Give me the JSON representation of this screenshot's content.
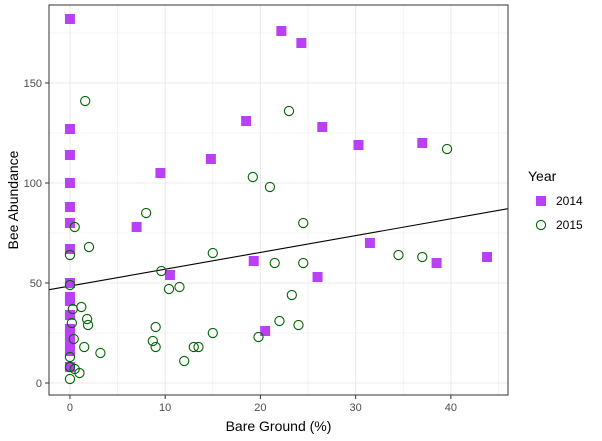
{
  "chart_data": {
    "type": "scatter",
    "title": "",
    "xlabel": "Bare Ground (%)",
    "ylabel": "Bee Abundance",
    "xlim": [
      -2.2,
      46
    ],
    "ylim": [
      -6,
      189
    ],
    "x_ticks": [
      0,
      10,
      20,
      30,
      40
    ],
    "y_ticks": [
      0,
      50,
      100,
      150
    ],
    "grid": true,
    "legend": {
      "title": "Year",
      "position": "right"
    },
    "series": [
      {
        "name": "2014",
        "marker": "square",
        "color": "#B940F5",
        "points": [
          [
            0,
            182
          ],
          [
            0,
            127
          ],
          [
            0,
            114
          ],
          [
            0,
            100
          ],
          [
            0,
            88
          ],
          [
            0,
            80
          ],
          [
            0,
            67
          ],
          [
            0,
            50
          ],
          [
            0,
            43
          ],
          [
            0,
            41
          ],
          [
            0,
            34
          ],
          [
            0,
            27
          ],
          [
            0,
            24
          ],
          [
            0,
            20
          ],
          [
            0,
            16
          ],
          [
            0,
            8
          ],
          [
            7,
            78
          ],
          [
            9.5,
            105
          ],
          [
            10.5,
            54
          ],
          [
            14.8,
            112
          ],
          [
            18.5,
            131
          ],
          [
            19.3,
            61
          ],
          [
            20.5,
            26
          ],
          [
            22.2,
            176
          ],
          [
            24.3,
            170
          ],
          [
            26,
            53
          ],
          [
            26.5,
            128
          ],
          [
            30.3,
            119
          ],
          [
            31.5,
            70
          ],
          [
            37,
            120
          ],
          [
            38.5,
            60
          ],
          [
            43.8,
            63
          ]
        ]
      },
      {
        "name": "2015",
        "marker": "circle",
        "color": "#006400",
        "points": [
          [
            1.6,
            141
          ],
          [
            23,
            136
          ],
          [
            39.6,
            117
          ],
          [
            19.2,
            103
          ],
          [
            21,
            98
          ],
          [
            24.5,
            80
          ],
          [
            8,
            85
          ],
          [
            0.5,
            78
          ],
          [
            2,
            68
          ],
          [
            15,
            65
          ],
          [
            34.5,
            64
          ],
          [
            37,
            63
          ],
          [
            9.6,
            56
          ],
          [
            21.5,
            60
          ],
          [
            24.5,
            60
          ],
          [
            0,
            64
          ],
          [
            10.4,
            47
          ],
          [
            11.5,
            48
          ],
          [
            0,
            49
          ],
          [
            23.3,
            44
          ],
          [
            1.2,
            38
          ],
          [
            0.3,
            37
          ],
          [
            1.8,
            32
          ],
          [
            1.9,
            29
          ],
          [
            9,
            28
          ],
          [
            0.2,
            30
          ],
          [
            22,
            31
          ],
          [
            24,
            29
          ],
          [
            15,
            25
          ],
          [
            0.4,
            22
          ],
          [
            8.7,
            21
          ],
          [
            9,
            18
          ],
          [
            13,
            18
          ],
          [
            13.5,
            18
          ],
          [
            19.8,
            23
          ],
          [
            1.5,
            18
          ],
          [
            3.2,
            15
          ],
          [
            0,
            13
          ],
          [
            12,
            11
          ],
          [
            0,
            8
          ],
          [
            1,
            5
          ],
          [
            0.5,
            7
          ],
          [
            0,
            2
          ]
        ]
      }
    ],
    "trendline": {
      "type": "linear",
      "intercept": 48.5,
      "slope": 0.84,
      "x_range": [
        -2.2,
        46
      ],
      "color": "#000000"
    }
  }
}
